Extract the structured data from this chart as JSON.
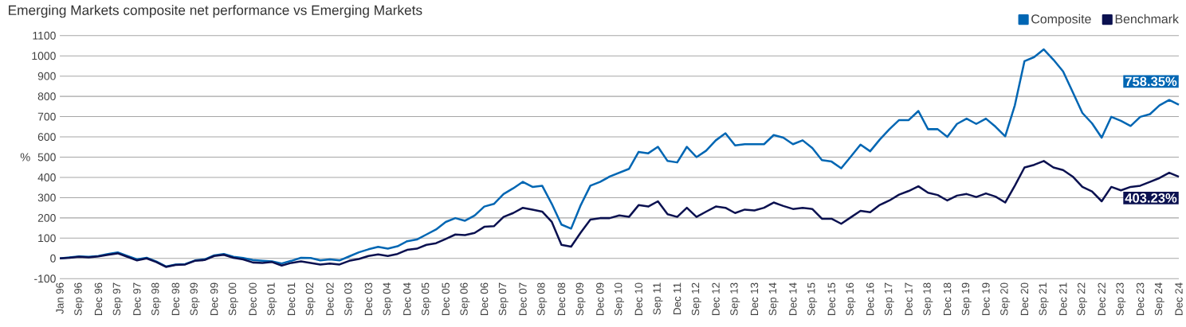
{
  "chart_data": {
    "type": "line",
    "title": "Emerging Markets composite net performance vs Emerging Markets",
    "ylabel": "%",
    "categories": [
      "Jan 96",
      null,
      "Sep 96",
      null,
      "Dec 96",
      null,
      "Sep 97",
      null,
      "Dec 97",
      null,
      "Sep 98",
      null,
      "Dec 98",
      null,
      "Sep 99",
      null,
      "Dec 99",
      null,
      "Sep 00",
      null,
      "Dec 00",
      null,
      "Sep 01",
      null,
      "Dec 01",
      null,
      "Sep 02",
      null,
      "Dec 02",
      null,
      "Sep 03",
      null,
      "Dec 03",
      null,
      "Sep 04",
      null,
      "Dec 04",
      null,
      "Sep 05",
      null,
      "Dec 05",
      null,
      "Sep 06",
      null,
      "Dec 06",
      null,
      "Sep 07",
      null,
      "Dec 07",
      null,
      "Sep 08",
      null,
      "Dec 08",
      null,
      "Sep 09",
      null,
      "Dec 09",
      null,
      "Sep 10",
      null,
      "Dec 10",
      null,
      "Sep 11",
      null,
      "Dec 11",
      null,
      "Sep 12",
      null,
      "Dec 12",
      null,
      "Sep 13",
      null,
      "Dec 13",
      null,
      "Sep 14",
      null,
      "Dec 14",
      null,
      "Sep 15",
      null,
      "Dec 15",
      null,
      "Sep 16",
      null,
      "Dec 16",
      null,
      "Sep 17",
      null,
      "Dec 17",
      null,
      "Sep 18",
      null,
      "Dec 18",
      null,
      "Sep 19",
      null,
      "Dec 19",
      null,
      "Sep 20",
      null,
      "Dec 20",
      null,
      "Sep 21",
      null,
      "Dec 21",
      null,
      "Sep 22",
      null,
      "Dec 22",
      null,
      "Sep 23",
      null,
      "Dec 23",
      null,
      "Sep 24",
      null,
      "Dec 24"
    ],
    "series": [
      {
        "name": "Composite",
        "color": "#0066b3",
        "values": [
          0,
          5,
          10,
          8,
          12,
          22,
          30,
          12,
          -5,
          3,
          -15,
          -40,
          -30,
          -28,
          -10,
          -5,
          15,
          22,
          8,
          2,
          -8,
          -12,
          -15,
          -25,
          -12,
          3,
          2,
          -10,
          -5,
          -10,
          10,
          30,
          45,
          57,
          48,
          60,
          85,
          93,
          118,
          143,
          180,
          199,
          186,
          212,
          256,
          269,
          318,
          346,
          378,
          353,
          359,
          269,
          167,
          147,
          263,
          359,
          378,
          404,
          423,
          442,
          526,
          519,
          551,
          481,
          474,
          551,
          500,
          532,
          583,
          618,
          558,
          564,
          564,
          564,
          609,
          596,
          564,
          583,
          545,
          485,
          478,
          445,
          503,
          562,
          529,
          587,
          638,
          683,
          683,
          728,
          638,
          638,
          600,
          664,
          690,
          664,
          690,
          650,
          603,
          756,
          974,
          994,
          1032,
          981,
          923,
          821,
          718,
          667,
          596,
          699,
          679,
          654,
          699,
          712,
          756,
          782,
          758.35
        ],
        "value_labels": [
          null,
          null,
          null,
          null,
          null,
          null,
          null,
          null,
          null,
          null,
          null,
          null,
          null,
          null,
          null,
          null,
          null,
          null,
          null,
          null,
          null,
          null,
          null,
          null,
          null,
          null,
          null,
          null,
          null,
          null,
          null,
          null,
          null,
          null,
          null,
          null,
          null,
          null,
          null,
          null,
          null,
          null,
          null,
          null,
          null,
          null,
          null,
          null,
          null,
          null,
          null,
          null,
          null,
          null,
          null,
          null,
          null,
          null,
          null,
          null,
          null,
          null,
          null,
          null,
          null,
          null,
          null,
          null,
          null,
          null,
          null,
          null,
          null,
          null,
          null,
          null,
          null,
          null,
          null,
          null,
          null,
          null,
          null,
          null,
          null,
          null,
          null,
          null,
          null,
          null,
          null,
          null,
          null,
          null,
          null,
          null,
          null,
          null,
          null,
          null,
          null,
          null,
          null,
          null,
          null,
          null,
          null,
          null,
          null,
          null,
          null,
          null,
          null,
          null,
          null,
          null,
          "758.35%"
        ]
      },
      {
        "name": "Benchmark",
        "color": "#0b1150",
        "values": [
          0,
          3,
          8,
          5,
          10,
          18,
          25,
          8,
          -10,
          0,
          -18,
          -42,
          -32,
          -30,
          -12,
          -8,
          12,
          18,
          3,
          -5,
          -20,
          -22,
          -18,
          -35,
          -22,
          -15,
          -22,
          -30,
          -25,
          -30,
          -12,
          -3,
          12,
          20,
          12,
          22,
          42,
          48,
          67,
          75,
          96,
          118,
          115,
          126,
          156,
          159,
          205,
          224,
          250,
          241,
          231,
          180,
          67,
          58,
          128,
          192,
          199,
          199,
          212,
          205,
          263,
          256,
          282,
          218,
          205,
          250,
          205,
          231,
          256,
          250,
          224,
          241,
          237,
          250,
          276,
          259,
          244,
          250,
          244,
          196,
          196,
          171,
          203,
          235,
          228,
          264,
          286,
          315,
          333,
          356,
          324,
          313,
          286,
          310,
          318,
          303,
          321,
          305,
          276,
          359,
          449,
          462,
          481,
          449,
          436,
          404,
          353,
          331,
          282,
          353,
          336,
          353,
          359,
          378,
          397,
          423,
          403.23
        ],
        "value_labels": [
          null,
          null,
          null,
          null,
          null,
          null,
          null,
          null,
          null,
          null,
          null,
          null,
          null,
          null,
          null,
          null,
          null,
          null,
          null,
          null,
          null,
          null,
          null,
          null,
          null,
          null,
          null,
          null,
          null,
          null,
          null,
          null,
          null,
          null,
          null,
          null,
          null,
          null,
          null,
          null,
          null,
          null,
          null,
          null,
          null,
          null,
          null,
          null,
          null,
          null,
          null,
          null,
          null,
          null,
          null,
          null,
          null,
          null,
          null,
          null,
          null,
          null,
          null,
          null,
          null,
          null,
          null,
          null,
          null,
          null,
          null,
          null,
          null,
          null,
          null,
          null,
          null,
          null,
          null,
          null,
          null,
          null,
          null,
          null,
          null,
          null,
          null,
          null,
          null,
          null,
          null,
          null,
          null,
          null,
          null,
          null,
          null,
          null,
          null,
          null,
          null,
          null,
          null,
          null,
          null,
          null,
          null,
          null,
          null,
          null,
          null,
          null,
          null,
          null,
          null,
          null,
          "403.23%"
        ]
      }
    ],
    "ylim": [
      -100,
      1100
    ],
    "yticks": [
      -100,
      0,
      100,
      200,
      300,
      400,
      500,
      600,
      700,
      800,
      900,
      1000,
      1100
    ],
    "grid": "y",
    "legend": "top right"
  }
}
